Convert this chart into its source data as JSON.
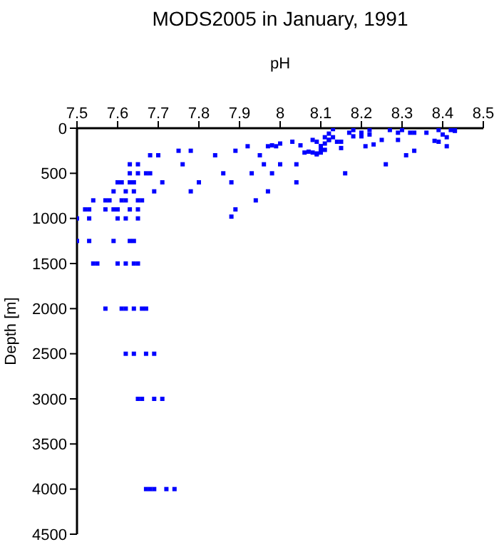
{
  "chart_data": {
    "type": "scatter",
    "title": "MODS2005 in January, 1991",
    "xlabel": "pH",
    "ylabel": "Depth [m]",
    "color": "#0000ff",
    "marker": "square",
    "x": [
      7.75,
      7.78,
      7.68,
      7.7,
      7.63,
      7.65,
      7.76,
      7.63,
      7.65,
      7.67,
      7.68,
      7.71,
      7.8,
      7.6,
      7.61,
      7.63,
      7.64,
      7.59,
      7.62,
      7.64,
      7.69,
      7.78,
      7.54,
      7.57,
      7.58,
      7.61,
      7.62,
      7.65,
      7.66,
      7.52,
      7.53,
      7.57,
      7.59,
      7.6,
      7.63,
      7.65,
      7.5,
      7.53,
      7.6,
      7.62,
      7.65,
      7.5,
      7.53,
      7.59,
      7.63,
      7.64,
      7.54,
      7.55,
      7.6,
      7.62,
      7.64,
      7.65,
      7.57,
      7.61,
      7.62,
      7.64,
      7.66,
      7.67,
      7.62,
      7.64,
      7.67,
      7.69,
      7.65,
      7.66,
      7.69,
      7.71,
      7.67,
      7.68,
      7.69,
      7.72,
      7.74,
      7.84,
      7.89,
      7.92,
      7.95,
      7.97,
      7.98,
      7.99,
      8.0,
      8.03,
      8.05,
      7.96,
      8.0,
      8.04,
      7.86,
      7.93,
      7.98,
      7.88,
      8.04,
      7.97,
      7.94,
      7.89,
      7.88,
      8.06,
      8.07,
      8.08,
      8.09,
      8.1,
      8.11,
      8.08,
      8.1,
      8.11,
      8.12,
      8.12,
      8.13,
      8.13,
      8.14,
      8.1,
      8.15,
      8.15,
      8.17,
      8.18,
      8.2,
      8.22,
      8.22,
      8.2,
      8.18,
      8.21,
      8.23,
      8.25,
      8.16,
      8.26,
      8.31,
      8.33,
      8.27,
      8.29,
      8.3,
      8.32,
      8.33,
      8.36,
      8.29,
      8.39,
      8.4,
      8.42,
      8.43,
      8.43,
      8.41,
      8.38,
      8.39,
      8.41,
      8.09,
      8.1,
      8.11,
      8.12,
      8.09
    ],
    "values": [
      250,
      250,
      300,
      300,
      400,
      400,
      400,
      500,
      500,
      500,
      500,
      600,
      600,
      600,
      600,
      600,
      600,
      700,
      700,
      700,
      700,
      700,
      800,
      800,
      800,
      800,
      800,
      800,
      800,
      900,
      900,
      900,
      900,
      900,
      900,
      900,
      1000,
      1000,
      1000,
      1000,
      1000,
      1250,
      1250,
      1250,
      1250,
      1250,
      1500,
      1500,
      1500,
      1500,
      1500,
      1500,
      2000,
      2000,
      2000,
      2000,
      2000,
      2000,
      2500,
      2500,
      2500,
      2500,
      3000,
      3000,
      3000,
      3000,
      4000,
      4000,
      4000,
      4000,
      4000,
      300,
      250,
      200,
      300,
      200,
      190,
      200,
      170,
      150,
      190,
      400,
      400,
      400,
      500,
      500,
      500,
      600,
      600,
      700,
      800,
      900,
      980,
      270,
      260,
      270,
      290,
      270,
      240,
      130,
      200,
      170,
      130,
      60,
      10,
      100,
      150,
      240,
      220,
      150,
      50,
      20,
      50,
      20,
      70,
      90,
      90,
      200,
      180,
      130,
      500,
      400,
      300,
      250,
      20,
      50,
      20,
      50,
      50,
      50,
      130,
      20,
      70,
      20,
      30,
      20,
      100,
      140,
      150,
      200,
      150,
      200,
      100,
      130,
      280
    ],
    "xlim": [
      7.5,
      8.5
    ],
    "xticks": [
      7.5,
      7.6,
      7.7,
      7.8,
      7.9,
      8,
      8.1,
      8.2,
      8.3,
      8.4,
      8.5
    ],
    "ylim": [
      4500,
      0
    ],
    "yticks": [
      0,
      500,
      1000,
      1500,
      2000,
      2500,
      3000,
      3500,
      4000,
      4500
    ]
  }
}
